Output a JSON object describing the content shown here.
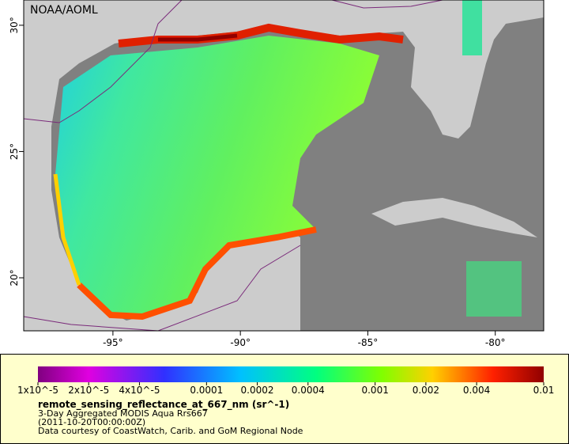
{
  "map": {
    "credit": "NOAA/AOML",
    "lon_range": [
      -98.5,
      -78.1
    ],
    "lat_range": [
      17.9,
      31.0
    ],
    "lon_ticks": [
      {
        "value": -95,
        "label": "-95°"
      },
      {
        "value": -90,
        "label": "-90°"
      },
      {
        "value": -85,
        "label": "-85°"
      },
      {
        "value": -80,
        "label": "-80°"
      }
    ],
    "lat_ticks": [
      {
        "value": 20,
        "label": "20°"
      },
      {
        "value": 25,
        "label": "25°"
      },
      {
        "value": 30,
        "label": "30°"
      }
    ]
  },
  "colorbar": {
    "range": [
      1e-05,
      0.01
    ],
    "log": true,
    "ticks": [
      {
        "value": 1e-05,
        "label": "1x10^-5"
      },
      {
        "value": 2e-05,
        "label": "2x10^-5"
      },
      {
        "value": 4e-05,
        "label": "4x10^-5"
      },
      0.0001,
      0.0002,
      0.0004,
      0.001,
      0.002,
      0.004,
      0.01
    ],
    "title": "remote_sensing_reflectance_at_667_nm (sr^-1)",
    "lines": [
      "3-Day Aggregated MODIS Aqua Rrs667",
      "(2011-10-20T00:00:00Z)",
      "Data courtesy of CoastWatch, Carib. and GoM Regional Node"
    ]
  }
}
